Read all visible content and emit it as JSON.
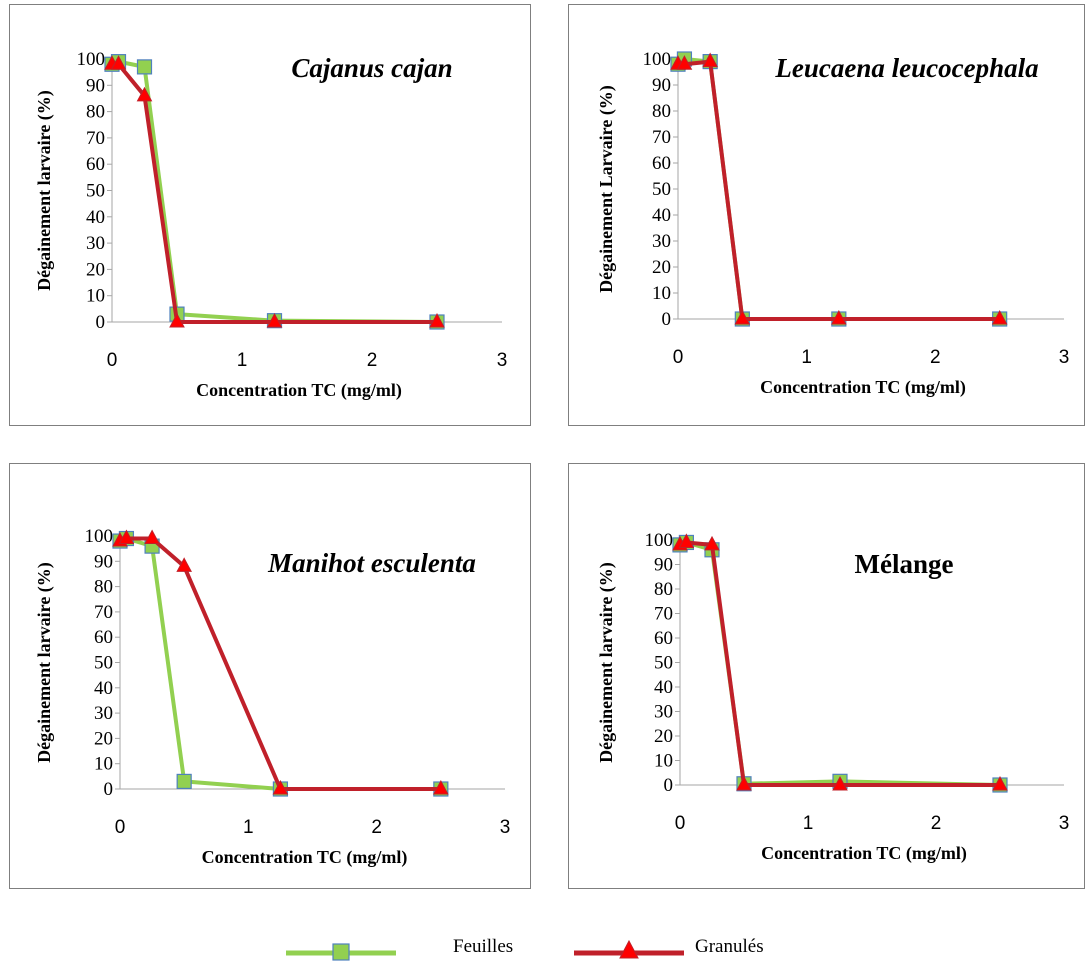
{
  "colors": {
    "feuilles": "#92d050",
    "feuilles_marker_border": "#4f81bd",
    "granules": "#c0202a",
    "granules_marker": "#ff0000",
    "axis": "#a6a6a6"
  },
  "legend": [
    {
      "key": "feuilles",
      "label": "Feuilles",
      "marker": "square"
    },
    {
      "key": "granules",
      "label": "Granulés",
      "marker": "triangle"
    }
  ],
  "chart_data": [
    {
      "type": "line",
      "title": "Cajanus cajan",
      "title_italic": true,
      "xlabel": "Concentration TC (mg/ml)",
      "ylabel": "Dégainement larvaire (%)",
      "xlim": [
        0,
        3
      ],
      "ylim": [
        0,
        100
      ],
      "xticks": [
        "0",
        "1",
        "2",
        "3"
      ],
      "yticks": [
        "0",
        "10",
        "20",
        "30",
        "40",
        "50",
        "60",
        "70",
        "80",
        "90",
        "100"
      ],
      "grid": false,
      "x": [
        0,
        0.05,
        0.25,
        0.5,
        1.25,
        2.5
      ],
      "series": [
        {
          "name": "Feuilles",
          "key": "feuilles",
          "values": [
            98,
            99,
            97,
            3,
            0.5,
            0
          ]
        },
        {
          "name": "Granulés",
          "key": "granules",
          "values": [
            98,
            98,
            86,
            0,
            0,
            0
          ]
        }
      ]
    },
    {
      "type": "line",
      "title": "Leucaena leucocephala",
      "title_italic": true,
      "xlabel": "Concentration TC (mg/ml)",
      "ylabel": "Dégainement Larvaire (%)",
      "xlim": [
        0,
        3
      ],
      "ylim": [
        0,
        100
      ],
      "xticks": [
        "0",
        "1",
        "2",
        "3"
      ],
      "yticks": [
        "0",
        "10",
        "20",
        "30",
        "40",
        "50",
        "60",
        "70",
        "80",
        "90",
        "100"
      ],
      "grid": false,
      "x": [
        0,
        0.05,
        0.25,
        0.5,
        1.25,
        2.5
      ],
      "series": [
        {
          "name": "Feuilles",
          "key": "feuilles",
          "values": [
            98,
            100,
            99,
            0,
            0,
            0
          ]
        },
        {
          "name": "Granulés",
          "key": "granules",
          "values": [
            98,
            98,
            99,
            0,
            0,
            0
          ]
        }
      ]
    },
    {
      "type": "line",
      "title": "Manihot esculenta",
      "title_italic": true,
      "xlabel": "Concentration TC (mg/ml)",
      "ylabel": "Dégainement larvaire (%)",
      "xlim": [
        0,
        3
      ],
      "ylim": [
        0,
        100
      ],
      "xticks": [
        "0",
        "1",
        "2",
        "3"
      ],
      "yticks": [
        "0",
        "10",
        "20",
        "30",
        "40",
        "50",
        "60",
        "70",
        "80",
        "90",
        "100"
      ],
      "grid": false,
      "x": [
        0,
        0.05,
        0.25,
        0.5,
        1.25,
        2.5
      ],
      "series": [
        {
          "name": "Feuilles",
          "key": "feuilles",
          "values": [
            98,
            99,
            96,
            3,
            0,
            0
          ]
        },
        {
          "name": "Granulés",
          "key": "granules",
          "values": [
            98,
            99,
            99,
            88,
            0,
            0
          ]
        }
      ]
    },
    {
      "type": "line",
      "title": "Mélange",
      "title_italic": false,
      "xlabel": "Concentration TC (mg/ml)",
      "ylabel": "Dégainement larvaire (%)",
      "xlim": [
        0,
        3
      ],
      "ylim": [
        0,
        100
      ],
      "xticks": [
        "0",
        "1",
        "2",
        "3"
      ],
      "yticks": [
        "0",
        "10",
        "20",
        "30",
        "40",
        "50",
        "60",
        "70",
        "80",
        "90",
        "100"
      ],
      "grid": false,
      "x": [
        0,
        0.05,
        0.25,
        0.5,
        1.25,
        2.5
      ],
      "series": [
        {
          "name": "Feuilles",
          "key": "feuilles",
          "values": [
            98,
            99,
            96,
            0.5,
            1.5,
            0
          ]
        },
        {
          "name": "Granulés",
          "key": "granules",
          "values": [
            98,
            99,
            98,
            0,
            0,
            0
          ]
        }
      ]
    }
  ]
}
